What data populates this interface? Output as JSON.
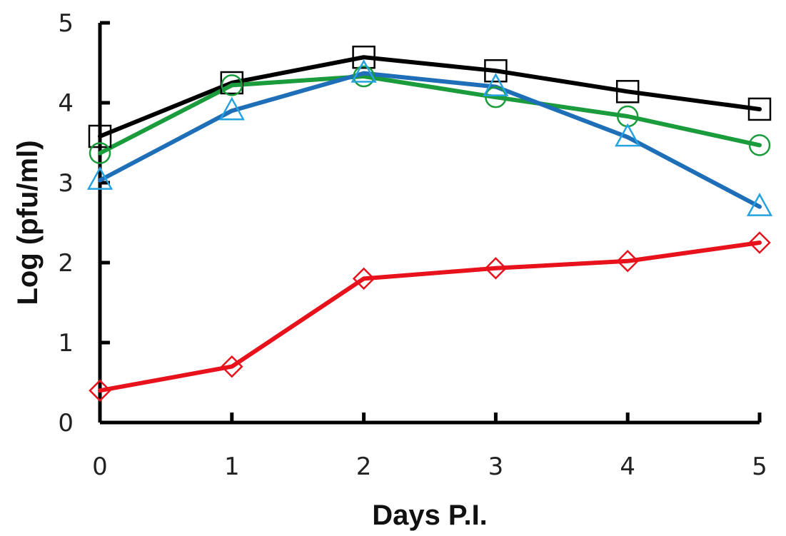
{
  "chart_data": {
    "type": "line",
    "title": "",
    "xlabel": "Days P.I.",
    "ylabel": "Log (pfu/ml)",
    "x": [
      0,
      1,
      2,
      3,
      4,
      5
    ],
    "xlim": [
      0,
      5
    ],
    "ylim": [
      0,
      5
    ],
    "x_ticks": [
      "0",
      "1",
      "2",
      "3",
      "4",
      "5"
    ],
    "y_ticks": [
      "0",
      "1",
      "2",
      "3",
      "4",
      "5"
    ],
    "grid": false,
    "legend": "none",
    "series": [
      {
        "color": "#000000",
        "marker": "square",
        "values": [
          3.58,
          4.25,
          4.57,
          4.4,
          4.14,
          3.92
        ]
      },
      {
        "color": "#1a9b3c",
        "marker": "circle",
        "values": [
          3.37,
          4.22,
          4.33,
          4.07,
          3.83,
          3.47
        ]
      },
      {
        "color": "#1f6fb8",
        "marker": "triangle",
        "values": [
          3.03,
          3.9,
          4.37,
          4.2,
          3.57,
          2.7
        ]
      },
      {
        "color": "#e8121c",
        "marker": "diamond",
        "values": [
          0.4,
          0.7,
          1.8,
          1.93,
          2.02,
          2.25
        ]
      }
    ]
  }
}
